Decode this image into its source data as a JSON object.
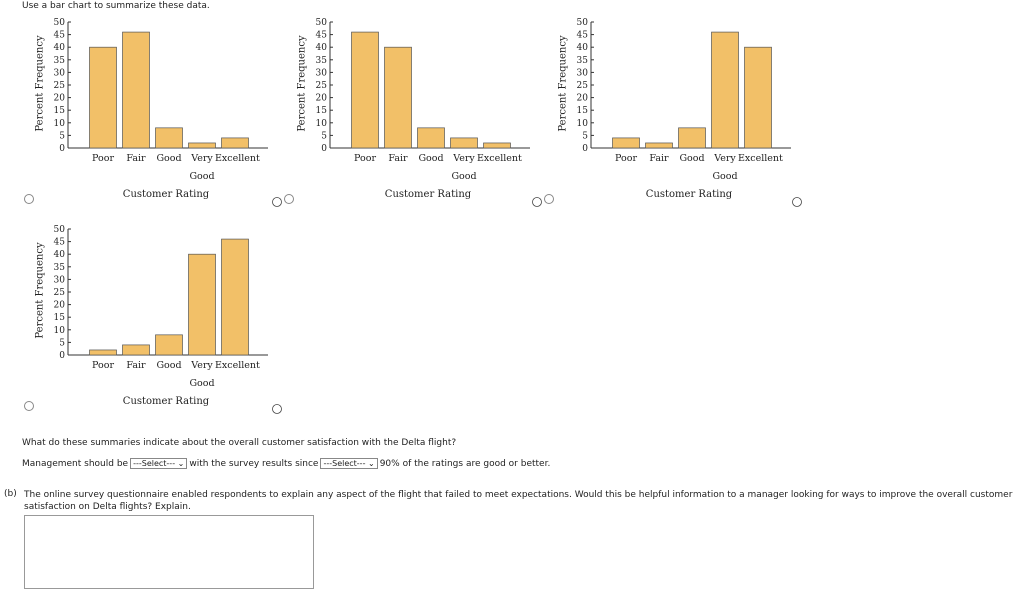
{
  "instruction": "Use a bar chart to summarize these data.",
  "charts": [
    {
      "type": "bar",
      "x_label": "Customer Rating",
      "y_label": "Percent Frequency",
      "categories": [
        "Poor",
        "Fair",
        "Good",
        "Very Good",
        "Excellent"
      ],
      "values": [
        40,
        46,
        8,
        2,
        4
      ],
      "color": "#f2c068",
      "ylim": [
        0,
        50
      ],
      "yticks": [
        0,
        5,
        10,
        15,
        20,
        25,
        30,
        35,
        40,
        45,
        50
      ]
    },
    {
      "type": "bar",
      "x_label": "Customer Rating",
      "y_label": "Percent Frequency",
      "categories": [
        "Poor",
        "Fair",
        "Good",
        "Very Good",
        "Excellent"
      ],
      "values": [
        46,
        40,
        8,
        4,
        2
      ],
      "color": "#f2c068",
      "ylim": [
        0,
        50
      ],
      "yticks": [
        0,
        5,
        10,
        15,
        20,
        25,
        30,
        35,
        40,
        45,
        50
      ]
    },
    {
      "type": "bar",
      "x_label": "Customer Rating",
      "y_label": "Percent Frequency",
      "categories": [
        "Poor",
        "Fair",
        "Good",
        "Very Good",
        "Excellent"
      ],
      "values": [
        4,
        2,
        8,
        46,
        40
      ],
      "color": "#f2c068",
      "ylim": [
        0,
        50
      ],
      "yticks": [
        0,
        5,
        10,
        15,
        20,
        25,
        30,
        35,
        40,
        45,
        50
      ]
    },
    {
      "type": "bar",
      "x_label": "Customer Rating",
      "y_label": "Percent Frequency",
      "categories": [
        "Poor",
        "Fair",
        "Good",
        "Very Good",
        "Excellent"
      ],
      "values": [
        2,
        4,
        8,
        40,
        46
      ],
      "color": "#f2c068",
      "ylim": [
        0,
        50
      ],
      "yticks": [
        0,
        5,
        10,
        15,
        20,
        25,
        30,
        35,
        40,
        45,
        50
      ]
    }
  ],
  "question": "What do these summaries indicate about the overall customer satisfaction with the Delta flight?",
  "answer_sentence": {
    "before": "Management should be",
    "select1": "---Select---",
    "middle": "with the survey results since",
    "select2": "---Select---",
    "after": "90% of the ratings are good or better."
  },
  "part_b": {
    "label": "(b)",
    "text": "The online survey questionnaire enabled respondents to explain any aspect of the flight that failed to meet expectations. Would this be helpful information to a manager looking for ways to improve the overall customer satisfaction on Delta flights? Explain."
  }
}
